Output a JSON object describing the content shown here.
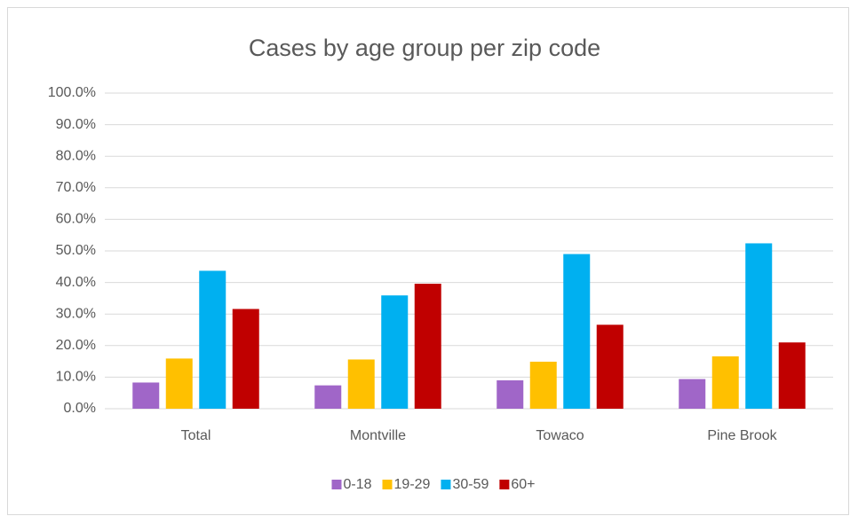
{
  "chart_data": {
    "type": "bar",
    "title": "Cases by age group per zip code",
    "categories": [
      "Total",
      "Montville",
      "Towaco",
      "Pine Brook"
    ],
    "series": [
      {
        "name": "0-18",
        "color": "#a066c8",
        "values": [
          8.3,
          7.4,
          9.0,
          9.4
        ]
      },
      {
        "name": "19-29",
        "color": "#ffc000",
        "values": [
          15.9,
          15.6,
          14.9,
          16.6
        ]
      },
      {
        "name": "30-59",
        "color": "#00b0f0",
        "values": [
          43.7,
          35.9,
          49.0,
          52.4
        ]
      },
      {
        "name": "60+",
        "color": "#c00000",
        "values": [
          31.6,
          39.6,
          26.6,
          21.0
        ]
      }
    ],
    "ylim": [
      0,
      100
    ],
    "yticks": [
      {
        "value": 0,
        "label": "0.0%"
      },
      {
        "value": 10,
        "label": "10.0%"
      },
      {
        "value": 20,
        "label": "20.0%"
      },
      {
        "value": 30,
        "label": "30.0%"
      },
      {
        "value": 40,
        "label": "40.0%"
      },
      {
        "value": 50,
        "label": "50.0%"
      },
      {
        "value": 60,
        "label": "60.0%"
      },
      {
        "value": 70,
        "label": "70.0%"
      },
      {
        "value": 80,
        "label": "80.0%"
      },
      {
        "value": 90,
        "label": "90.0%"
      },
      {
        "value": 100,
        "label": "100.0%"
      }
    ],
    "grid": true,
    "legend": "bottom"
  }
}
